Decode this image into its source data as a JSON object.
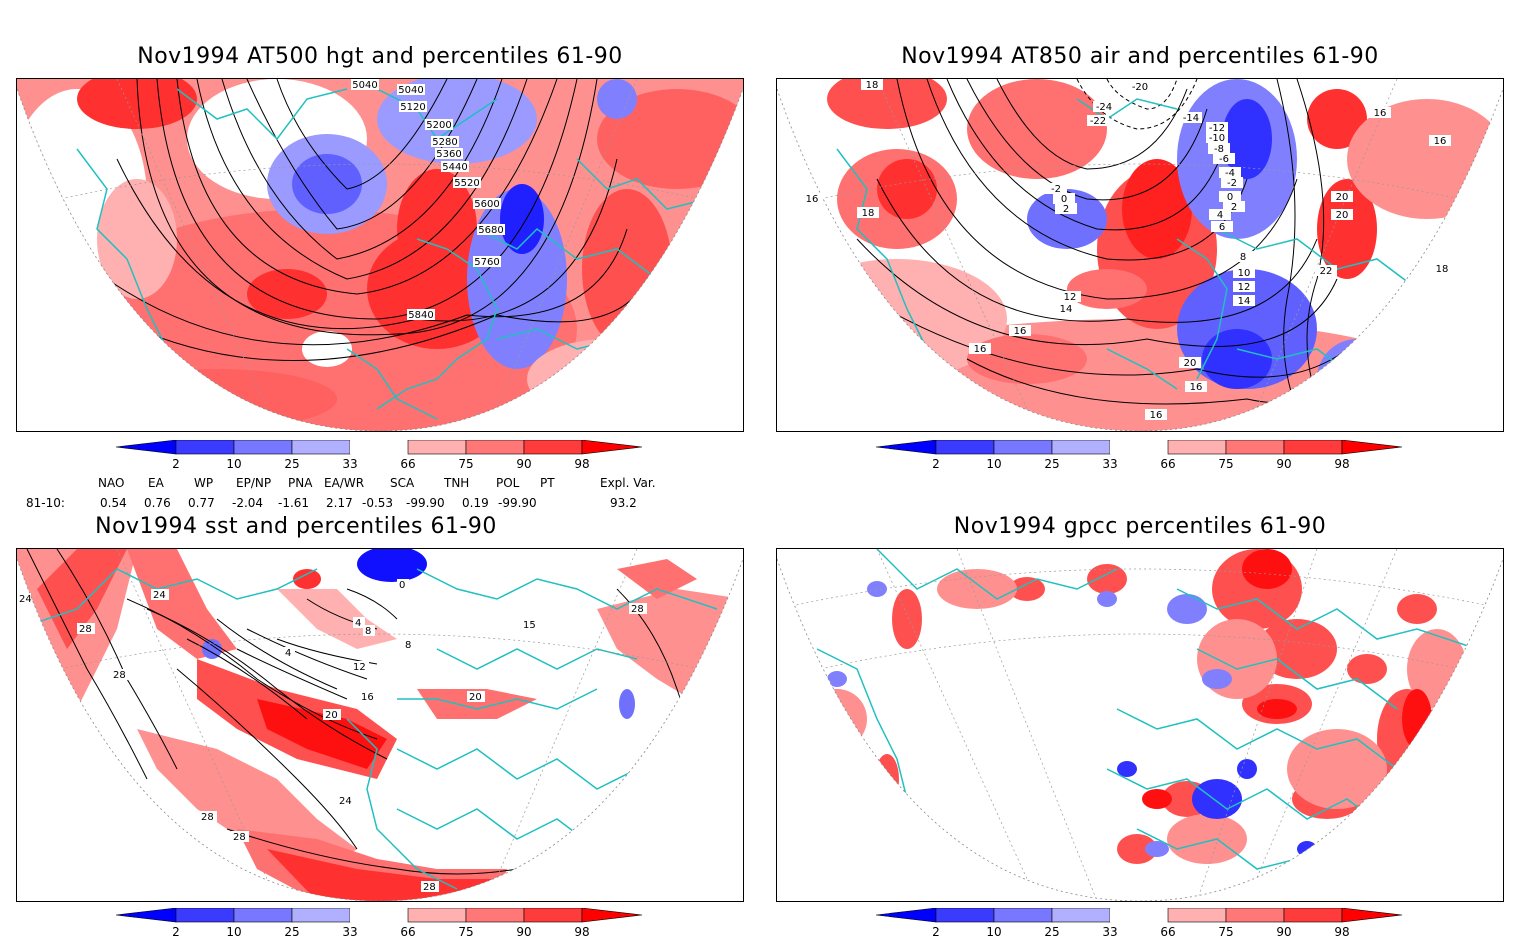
{
  "panels": [
    {
      "id": "p1",
      "title": "Nov1994 AT500 hgt and percentiles 61-90",
      "contour_labels": [
        "5040",
        "5040",
        "5120",
        "5200",
        "5280",
        "5360",
        "5440",
        "5520",
        "5600",
        "5680",
        "5760",
        "5840"
      ]
    },
    {
      "id": "p2",
      "title": "Nov1994 AT850 air and percentiles 61-90",
      "contour_labels": [
        "-20",
        "-24",
        "-22",
        "-14",
        "-12",
        "-10",
        "-8",
        "-6",
        "-4",
        "-2",
        "-2",
        "0",
        "0",
        "2",
        "2",
        "4",
        "6",
        "8",
        "10",
        "12",
        "12",
        "14",
        "14",
        "16",
        "16",
        "16",
        "16",
        "16",
        "16",
        "16",
        "18",
        "18",
        "18",
        "20",
        "20",
        "20",
        "22"
      ]
    },
    {
      "id": "p3",
      "title": "Nov1994 sst and percentiles 61-90",
      "contour_labels": [
        "24",
        "24",
        "28",
        "28",
        "28",
        "28",
        "28",
        "0",
        "4",
        "4",
        "8",
        "8",
        "12",
        "15",
        "16",
        "20",
        "20",
        "24",
        "28"
      ]
    },
    {
      "id": "p4",
      "title": "Nov1994 gpcc percentiles 61-90",
      "contour_labels": []
    }
  ],
  "colorbar": {
    "labels": [
      "2",
      "10",
      "25",
      "33",
      "66",
      "75",
      "90",
      "98"
    ],
    "colors": [
      "#0000ff",
      "#3b3bff",
      "#7777ff",
      "#b0b0ff",
      "#ffffff",
      "#ffb0b0",
      "#ff7777",
      "#ff3b3b",
      "#ff0000"
    ]
  },
  "teleconnections": {
    "row_label": "81-10:",
    "headers": [
      "NAO",
      "EA",
      "WP",
      "EP/NP",
      "PNA",
      "EA/WR",
      "SCA",
      "TNH",
      "POL",
      "PT",
      "Expl. Var."
    ],
    "values": [
      "0.54",
      "0.76",
      "0.77",
      "-2.04",
      "-1.61",
      "2.17",
      "-0.53",
      "-99.90",
      "0.19",
      "-99.90",
      "93.2"
    ]
  }
}
